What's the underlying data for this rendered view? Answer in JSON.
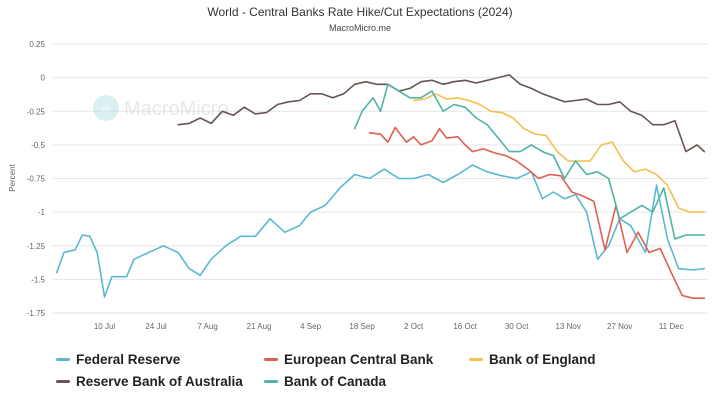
{
  "chart_data": {
    "type": "line",
    "title": "World - Central Banks Rate Hike/Cut Expectations (2024)",
    "subtitle": "MacroMicro.me",
    "watermark": "MacroMicro",
    "ylabel": "Percent",
    "xlabel": "",
    "ylim": [
      -1.75,
      0.25
    ],
    "yticks": [
      0.25,
      0,
      -0.25,
      -0.5,
      -0.75,
      -1,
      -1.25,
      -1.5,
      -1.75
    ],
    "ytick_labels": [
      "0.25",
      "0",
      "-0.25",
      "-0.5",
      "-0.75",
      "-1",
      "-1.25",
      "-1.5",
      "-1.75"
    ],
    "xlim": [
      "2024-06-26",
      "2024-12-21"
    ],
    "xticks": [
      "2024-07-10",
      "2024-07-24",
      "2024-08-07",
      "2024-08-21",
      "2024-09-04",
      "2024-09-18",
      "2024-10-02",
      "2024-10-16",
      "2024-10-30",
      "2024-11-13",
      "2024-11-27",
      "2024-12-11"
    ],
    "xtick_labels": [
      "10 Jul",
      "24 Jul",
      "7 Aug",
      "21 Aug",
      "4 Sep",
      "18 Sep",
      "2 Oct",
      "16 Oct",
      "30 Oct",
      "13 Nov",
      "27 Nov",
      "11 Dec"
    ],
    "grid": true,
    "legend_position": "bottom",
    "series": [
      {
        "name": "Federal Reserve",
        "color": "#5bb8d1",
        "points": [
          [
            "2024-06-27",
            -1.45
          ],
          [
            "2024-06-29",
            -1.3
          ],
          [
            "2024-07-02",
            -1.28
          ],
          [
            "2024-07-04",
            -1.17
          ],
          [
            "2024-07-06",
            -1.18
          ],
          [
            "2024-07-08",
            -1.3
          ],
          [
            "2024-07-10",
            -1.63
          ],
          [
            "2024-07-12",
            -1.48
          ],
          [
            "2024-07-16",
            -1.48
          ],
          [
            "2024-07-18",
            -1.35
          ],
          [
            "2024-07-22",
            -1.3
          ],
          [
            "2024-07-26",
            -1.25
          ],
          [
            "2024-07-30",
            -1.3
          ],
          [
            "2024-08-02",
            -1.42
          ],
          [
            "2024-08-05",
            -1.47
          ],
          [
            "2024-08-08",
            -1.35
          ],
          [
            "2024-08-12",
            -1.25
          ],
          [
            "2024-08-16",
            -1.18
          ],
          [
            "2024-08-20",
            -1.18
          ],
          [
            "2024-08-24",
            -1.05
          ],
          [
            "2024-08-28",
            -1.15
          ],
          [
            "2024-09-01",
            -1.1
          ],
          [
            "2024-09-04",
            -1.0
          ],
          [
            "2024-09-08",
            -0.95
          ],
          [
            "2024-09-12",
            -0.82
          ],
          [
            "2024-09-16",
            -0.72
          ],
          [
            "2024-09-20",
            -0.75
          ],
          [
            "2024-09-24",
            -0.68
          ],
          [
            "2024-09-28",
            -0.75
          ],
          [
            "2024-10-02",
            -0.75
          ],
          [
            "2024-10-06",
            -0.72
          ],
          [
            "2024-10-10",
            -0.78
          ],
          [
            "2024-10-14",
            -0.72
          ],
          [
            "2024-10-18",
            -0.65
          ],
          [
            "2024-10-22",
            -0.7
          ],
          [
            "2024-10-26",
            -0.73
          ],
          [
            "2024-10-30",
            -0.75
          ],
          [
            "2024-11-03",
            -0.7
          ],
          [
            "2024-11-06",
            -0.9
          ],
          [
            "2024-11-09",
            -0.85
          ],
          [
            "2024-11-12",
            -0.9
          ],
          [
            "2024-11-15",
            -0.87
          ],
          [
            "2024-11-18",
            -1.0
          ],
          [
            "2024-11-21",
            -1.35
          ],
          [
            "2024-11-24",
            -1.25
          ],
          [
            "2024-11-27",
            -1.05
          ],
          [
            "2024-11-30",
            -1.1
          ],
          [
            "2024-12-04",
            -1.3
          ],
          [
            "2024-12-07",
            -0.8
          ],
          [
            "2024-12-10",
            -1.2
          ],
          [
            "2024-12-13",
            -1.42
          ],
          [
            "2024-12-17",
            -1.43
          ],
          [
            "2024-12-20",
            -1.42
          ]
        ]
      },
      {
        "name": "European Central Bank",
        "color": "#e06050",
        "points": [
          [
            "2024-09-20",
            -0.41
          ],
          [
            "2024-09-23",
            -0.42
          ],
          [
            "2024-09-25",
            -0.48
          ],
          [
            "2024-09-27",
            -0.37
          ],
          [
            "2024-09-30",
            -0.48
          ],
          [
            "2024-10-02",
            -0.44
          ],
          [
            "2024-10-04",
            -0.5
          ],
          [
            "2024-10-07",
            -0.47
          ],
          [
            "2024-10-09",
            -0.38
          ],
          [
            "2024-10-11",
            -0.45
          ],
          [
            "2024-10-14",
            -0.44
          ],
          [
            "2024-10-16",
            -0.5
          ],
          [
            "2024-10-18",
            -0.55
          ],
          [
            "2024-10-21",
            -0.53
          ],
          [
            "2024-10-24",
            -0.56
          ],
          [
            "2024-10-27",
            -0.58
          ],
          [
            "2024-10-30",
            -0.62
          ],
          [
            "2024-11-02",
            -0.68
          ],
          [
            "2024-11-05",
            -0.75
          ],
          [
            "2024-11-08",
            -0.72
          ],
          [
            "2024-11-11",
            -0.73
          ],
          [
            "2024-11-14",
            -0.85
          ],
          [
            "2024-11-17",
            -0.88
          ],
          [
            "2024-11-20",
            -0.92
          ],
          [
            "2024-11-23",
            -1.28
          ],
          [
            "2024-11-26",
            -0.95
          ],
          [
            "2024-11-29",
            -1.3
          ],
          [
            "2024-12-02",
            -1.15
          ],
          [
            "2024-12-05",
            -1.3
          ],
          [
            "2024-12-08",
            -1.27
          ],
          [
            "2024-12-11",
            -1.45
          ],
          [
            "2024-12-14",
            -1.62
          ],
          [
            "2024-12-17",
            -1.64
          ],
          [
            "2024-12-20",
            -1.64
          ]
        ]
      },
      {
        "name": "Bank of England",
        "color": "#f2c14e",
        "points": [
          [
            "2024-10-02",
            -0.17
          ],
          [
            "2024-10-05",
            -0.16
          ],
          [
            "2024-10-08",
            -0.12
          ],
          [
            "2024-10-11",
            -0.16
          ],
          [
            "2024-10-14",
            -0.15
          ],
          [
            "2024-10-17",
            -0.17
          ],
          [
            "2024-10-20",
            -0.2
          ],
          [
            "2024-10-23",
            -0.25
          ],
          [
            "2024-10-26",
            -0.26
          ],
          [
            "2024-10-29",
            -0.3
          ],
          [
            "2024-11-01",
            -0.38
          ],
          [
            "2024-11-04",
            -0.42
          ],
          [
            "2024-11-07",
            -0.43
          ],
          [
            "2024-11-10",
            -0.55
          ],
          [
            "2024-11-13",
            -0.62
          ],
          [
            "2024-11-16",
            -0.62
          ],
          [
            "2024-11-19",
            -0.62
          ],
          [
            "2024-11-22",
            -0.5
          ],
          [
            "2024-11-25",
            -0.48
          ],
          [
            "2024-11-28",
            -0.62
          ],
          [
            "2024-12-01",
            -0.7
          ],
          [
            "2024-12-04",
            -0.68
          ],
          [
            "2024-12-07",
            -0.72
          ],
          [
            "2024-12-10",
            -0.8
          ],
          [
            "2024-12-13",
            -0.97
          ],
          [
            "2024-12-16",
            -1.0
          ],
          [
            "2024-12-20",
            -1.0
          ]
        ]
      },
      {
        "name": "Reserve Bank of Australia",
        "color": "#665550",
        "points": [
          [
            "2024-07-30",
            -0.35
          ],
          [
            "2024-08-02",
            -0.34
          ],
          [
            "2024-08-05",
            -0.3
          ],
          [
            "2024-08-08",
            -0.34
          ],
          [
            "2024-08-11",
            -0.25
          ],
          [
            "2024-08-14",
            -0.28
          ],
          [
            "2024-08-17",
            -0.22
          ],
          [
            "2024-08-20",
            -0.27
          ],
          [
            "2024-08-23",
            -0.26
          ],
          [
            "2024-08-26",
            -0.2
          ],
          [
            "2024-08-29",
            -0.18
          ],
          [
            "2024-09-01",
            -0.17
          ],
          [
            "2024-09-04",
            -0.12
          ],
          [
            "2024-09-07",
            -0.12
          ],
          [
            "2024-09-10",
            -0.15
          ],
          [
            "2024-09-13",
            -0.12
          ],
          [
            "2024-09-16",
            -0.05
          ],
          [
            "2024-09-19",
            -0.03
          ],
          [
            "2024-09-22",
            -0.05
          ],
          [
            "2024-09-25",
            -0.05
          ],
          [
            "2024-09-28",
            -0.1
          ],
          [
            "2024-10-01",
            -0.08
          ],
          [
            "2024-10-04",
            -0.03
          ],
          [
            "2024-10-07",
            -0.02
          ],
          [
            "2024-10-10",
            -0.05
          ],
          [
            "2024-10-13",
            -0.03
          ],
          [
            "2024-10-16",
            -0.02
          ],
          [
            "2024-10-19",
            -0.04
          ],
          [
            "2024-10-22",
            -0.02
          ],
          [
            "2024-10-25",
            0.0
          ],
          [
            "2024-10-28",
            0.02
          ],
          [
            "2024-10-31",
            -0.05
          ],
          [
            "2024-11-03",
            -0.08
          ],
          [
            "2024-11-06",
            -0.12
          ],
          [
            "2024-11-09",
            -0.15
          ],
          [
            "2024-11-12",
            -0.18
          ],
          [
            "2024-11-15",
            -0.17
          ],
          [
            "2024-11-18",
            -0.16
          ],
          [
            "2024-11-21",
            -0.2
          ],
          [
            "2024-11-24",
            -0.2
          ],
          [
            "2024-11-27",
            -0.18
          ],
          [
            "2024-11-30",
            -0.25
          ],
          [
            "2024-12-03",
            -0.28
          ],
          [
            "2024-12-06",
            -0.35
          ],
          [
            "2024-12-09",
            -0.35
          ],
          [
            "2024-12-12",
            -0.32
          ],
          [
            "2024-12-15",
            -0.55
          ],
          [
            "2024-12-18",
            -0.5
          ],
          [
            "2024-12-20",
            -0.55
          ]
        ]
      },
      {
        "name": "Bank of Canada",
        "color": "#4fb3a6",
        "points": [
          [
            "2024-09-16",
            -0.38
          ],
          [
            "2024-09-18",
            -0.25
          ],
          [
            "2024-09-21",
            -0.15
          ],
          [
            "2024-09-23",
            -0.25
          ],
          [
            "2024-09-25",
            -0.05
          ],
          [
            "2024-09-28",
            -0.1
          ],
          [
            "2024-10-01",
            -0.15
          ],
          [
            "2024-10-04",
            -0.15
          ],
          [
            "2024-10-07",
            -0.1
          ],
          [
            "2024-10-10",
            -0.25
          ],
          [
            "2024-10-13",
            -0.2
          ],
          [
            "2024-10-16",
            -0.22
          ],
          [
            "2024-10-19",
            -0.3
          ],
          [
            "2024-10-22",
            -0.35
          ],
          [
            "2024-10-25",
            -0.45
          ],
          [
            "2024-10-28",
            -0.55
          ],
          [
            "2024-10-31",
            -0.55
          ],
          [
            "2024-11-03",
            -0.5
          ],
          [
            "2024-11-06",
            -0.55
          ],
          [
            "2024-11-09",
            -0.58
          ],
          [
            "2024-11-12",
            -0.75
          ],
          [
            "2024-11-15",
            -0.62
          ],
          [
            "2024-11-18",
            -0.72
          ],
          [
            "2024-11-21",
            -0.7
          ],
          [
            "2024-11-24",
            -0.75
          ],
          [
            "2024-11-27",
            -1.05
          ],
          [
            "2024-11-30",
            -1.0
          ],
          [
            "2024-12-03",
            -0.95
          ],
          [
            "2024-12-06",
            -1.0
          ],
          [
            "2024-12-09",
            -0.82
          ],
          [
            "2024-12-12",
            -1.2
          ],
          [
            "2024-12-15",
            -1.17
          ],
          [
            "2024-12-20",
            -1.17
          ]
        ]
      }
    ]
  }
}
